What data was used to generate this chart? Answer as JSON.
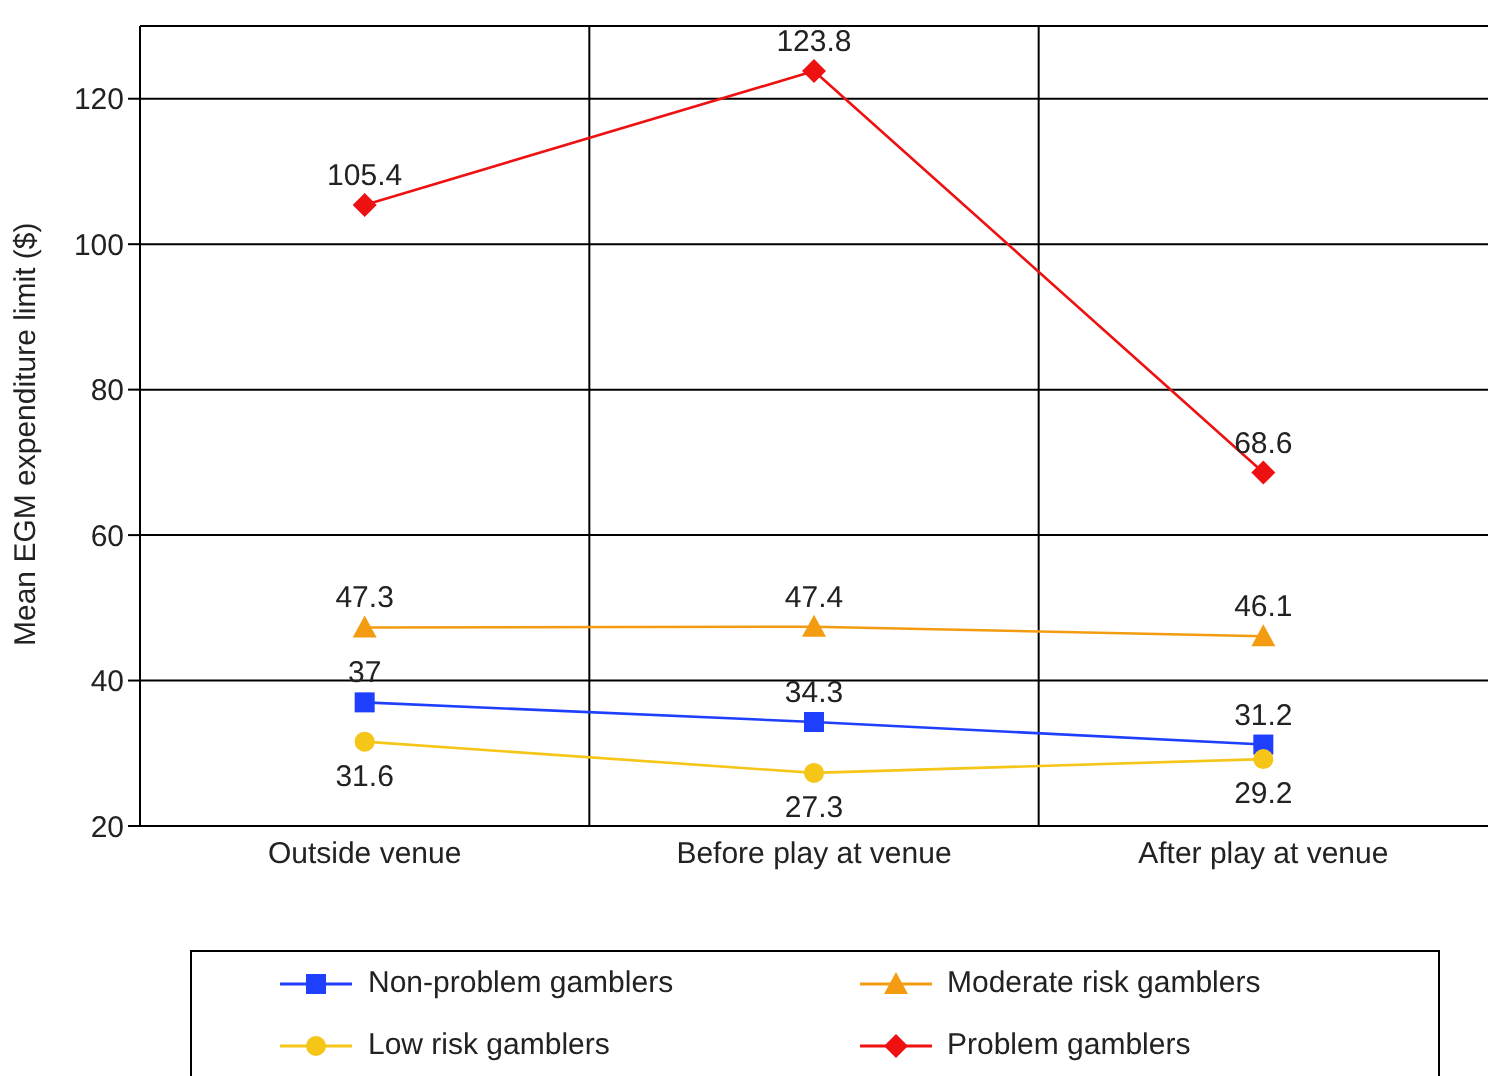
{
  "chart_data": {
    "type": "line",
    "ylabel": "Mean EGM expenditure limit ($)",
    "categories": [
      "Outside venue",
      "Before play at venue",
      "After play at venue"
    ],
    "series": [
      {
        "name": "Non-problem gamblers",
        "color": "#1f3fff",
        "marker": "square",
        "values": [
          37,
          34.3,
          31.2
        ]
      },
      {
        "name": "Moderate risk gamblers",
        "color": "#f39c12",
        "marker": "triangle",
        "values": [
          47.3,
          47.4,
          46.1
        ]
      },
      {
        "name": "Low risk gamblers",
        "color": "#f5c518",
        "marker": "circle",
        "values": [
          31.6,
          27.3,
          29.2
        ]
      },
      {
        "name": "Problem gamblers",
        "color": "#ee1111",
        "marker": "diamond",
        "values": [
          105.4,
          123.8,
          68.6
        ]
      }
    ],
    "ylim": [
      20,
      130
    ],
    "yticks": [
      20,
      40,
      60,
      80,
      100,
      120
    ],
    "grid": true,
    "legend": "bottom",
    "data_labels": true
  }
}
